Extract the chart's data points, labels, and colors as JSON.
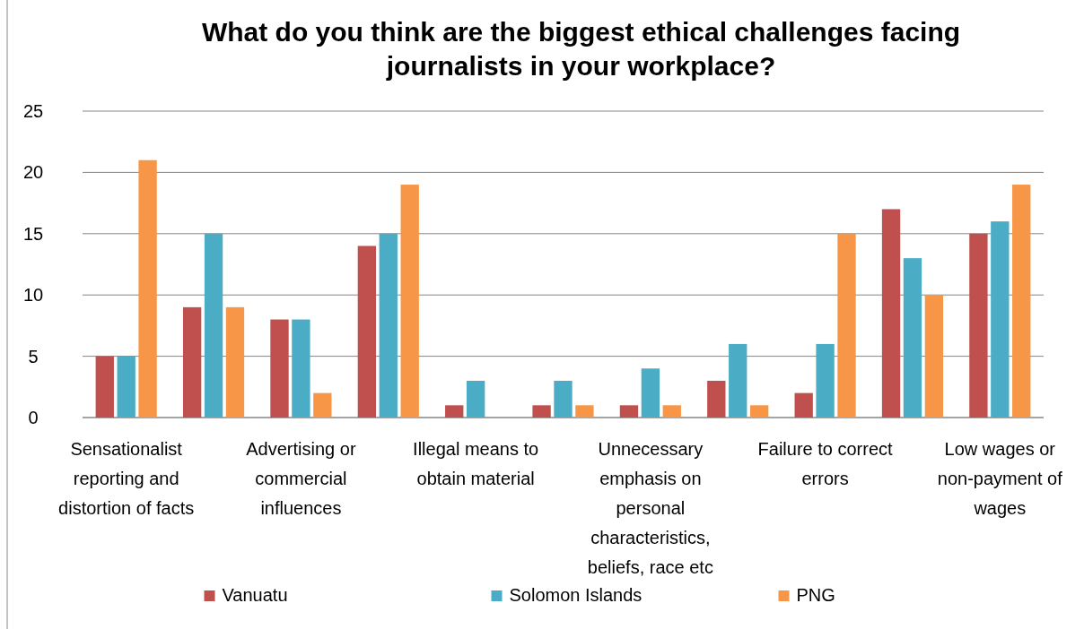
{
  "chart_data": {
    "type": "bar",
    "title": "What do you think are the biggest ethical challenges facing journalists in your workplace?",
    "categories": [
      "Sensationalist reporting and distortion of facts",
      null,
      "Advertising or commercial influences",
      null,
      "Illegal means to obtain material",
      null,
      "Unnecessary emphasis on personal characteristics, beliefs, race etc",
      null,
      "Failure to correct errors",
      null,
      "Low wages or non-payment of wages"
    ],
    "series": [
      {
        "name": "Vanuatu",
        "color": "#c0504d",
        "values": [
          5,
          9,
          8,
          14,
          1,
          1,
          1,
          3,
          2,
          17,
          15
        ]
      },
      {
        "name": "Solomon Islands",
        "color": "#4bacc6",
        "values": [
          5,
          15,
          8,
          15,
          3,
          3,
          4,
          6,
          6,
          13,
          16
        ]
      },
      {
        "name": "PNG",
        "color": "#f79646",
        "values": [
          21,
          9,
          2,
          19,
          0,
          1,
          1,
          1,
          15,
          10,
          19
        ]
      }
    ],
    "ylim": [
      0,
      25
    ],
    "yticks": [
      0,
      5,
      10,
      15,
      20,
      25
    ],
    "grid": "y",
    "legend": "bottom"
  }
}
